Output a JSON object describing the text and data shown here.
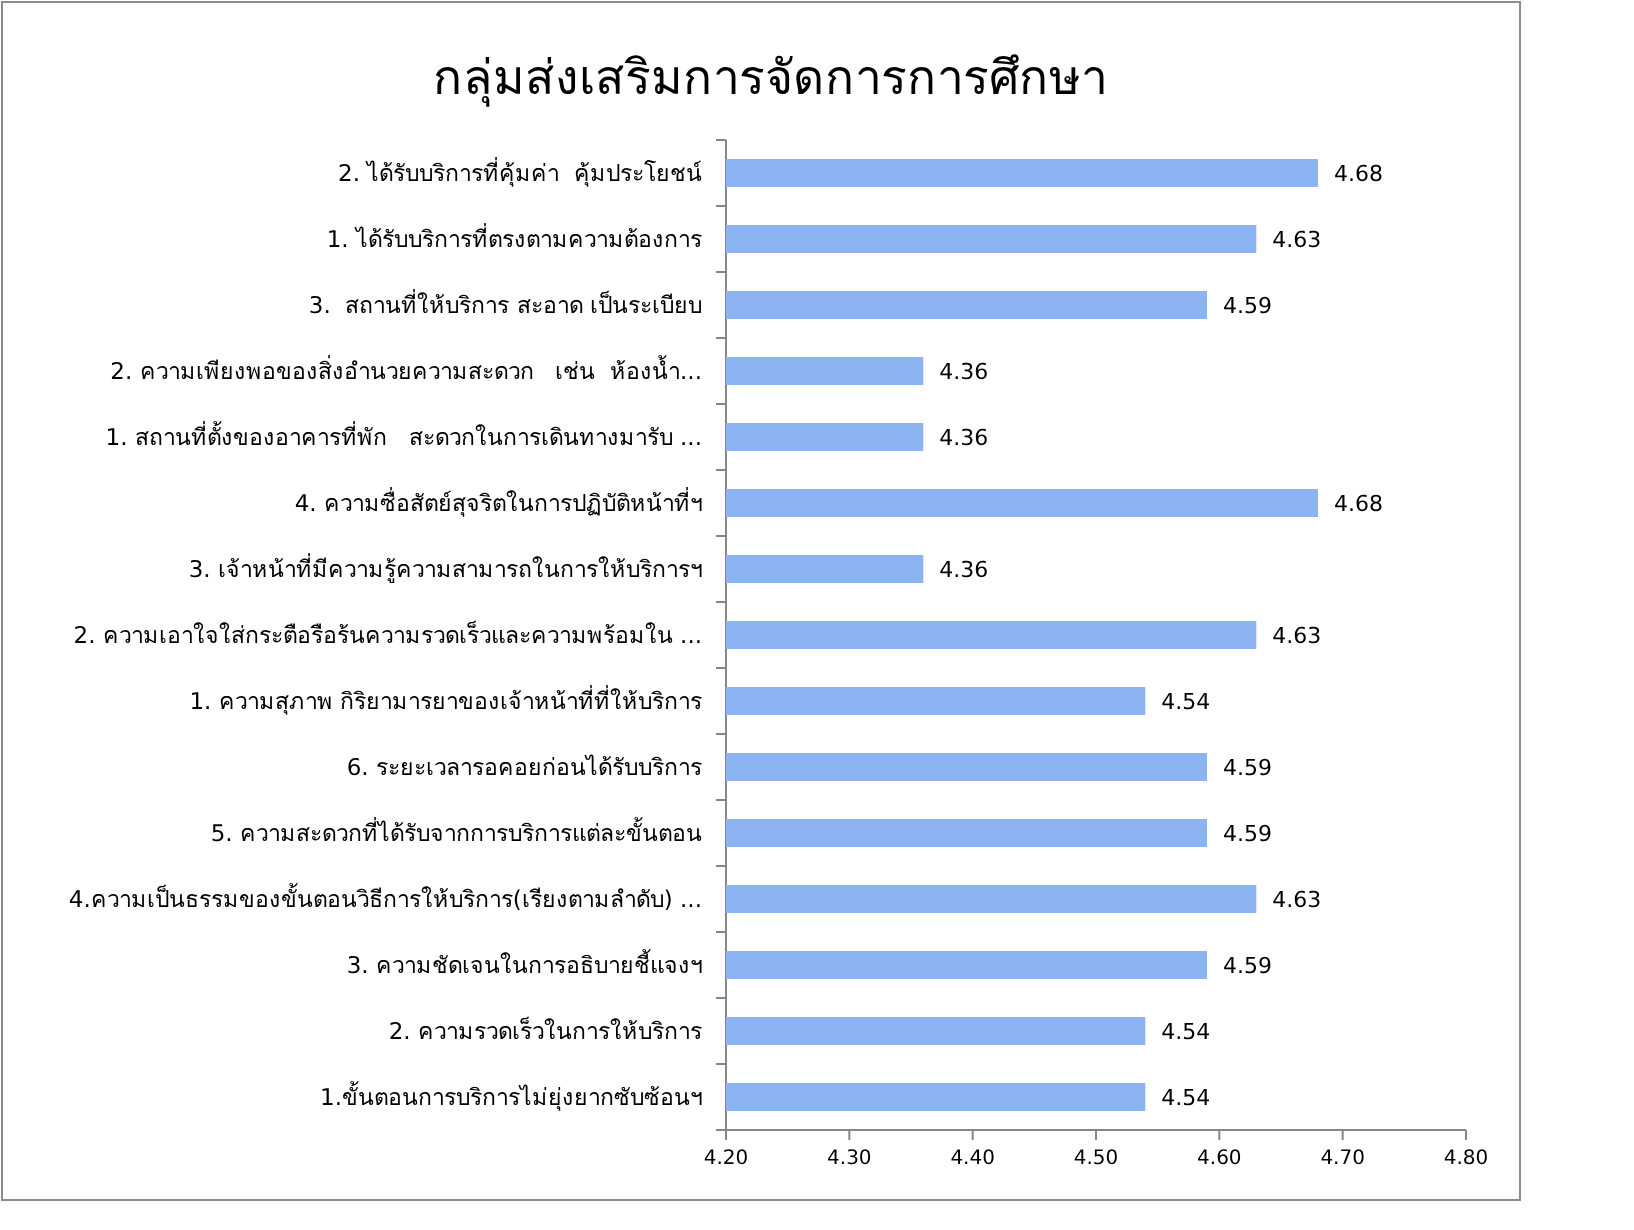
{
  "chart_data": {
    "type": "bar",
    "orientation": "horizontal",
    "title": "กลุ่มส่งเสริมการจัดการการศึกษา",
    "categories": [
      "2. ได้รับบริการที่คุ้มค่า  คุ้มประโยชน์",
      "1. ได้รับบริการที่ตรงตามความต้องการ",
      "3.  สถานที่ให้บริการ สะอาด เป็นระเบียบ",
      "2. ความเพียงพอของสิ่งอำนวยความสะดวก   เช่น  ห้องน้ำ...",
      "1. สถานที่ตั้งของอาคารที่พัก   สะดวกในการเดินทางมารับ ...",
      "4. ความซื่อสัตย์สุจริตในการปฏิบัติหน้าที่ฯ",
      "3. เจ้าหน้าที่มีความรู้ความสามารถในการให้บริการฯ",
      "2. ความเอาใจใส่กระตือรือร้นความรวดเร็วและความพร้อมใน ...",
      "1. ความสุภาพ กิริยามารยาของเจ้าหน้าที่ที่ให้บริการ",
      "6. ระยะเวลารอคอยก่อนได้รับบริการ",
      "5. ความสะดวกที่ได้รับจากการบริการแต่ละขั้นตอน",
      "4.ความเป็นธรรมของขั้นตอนวิธีการให้บริการ(เรียงตามลำดับ) ...",
      "3. ความชัดเจนในการอธิบายชี้แจงฯ",
      "2. ความรวดเร็วในการให้บริการ",
      "1.ขั้นตอนการบริการไม่ยุ่งยากซับซ้อนฯ"
    ],
    "values": [
      4.68,
      4.63,
      4.59,
      4.36,
      4.36,
      4.68,
      4.36,
      4.63,
      4.54,
      4.59,
      4.59,
      4.63,
      4.59,
      4.54,
      4.54
    ],
    "color": "#8cb3f2",
    "xlim": [
      4.2,
      4.8
    ],
    "xticks": [
      {
        "value": 4.2,
        "label": "4.20"
      },
      {
        "value": 4.3,
        "label": "4.30"
      },
      {
        "value": 4.4,
        "label": "4.40"
      },
      {
        "value": 4.5,
        "label": "4.50"
      },
      {
        "value": 4.6,
        "label": "4.60"
      },
      {
        "value": 4.7,
        "label": "4.70"
      },
      {
        "value": 4.8,
        "label": "4.80"
      }
    ],
    "data_labels": true,
    "grid": false
  }
}
